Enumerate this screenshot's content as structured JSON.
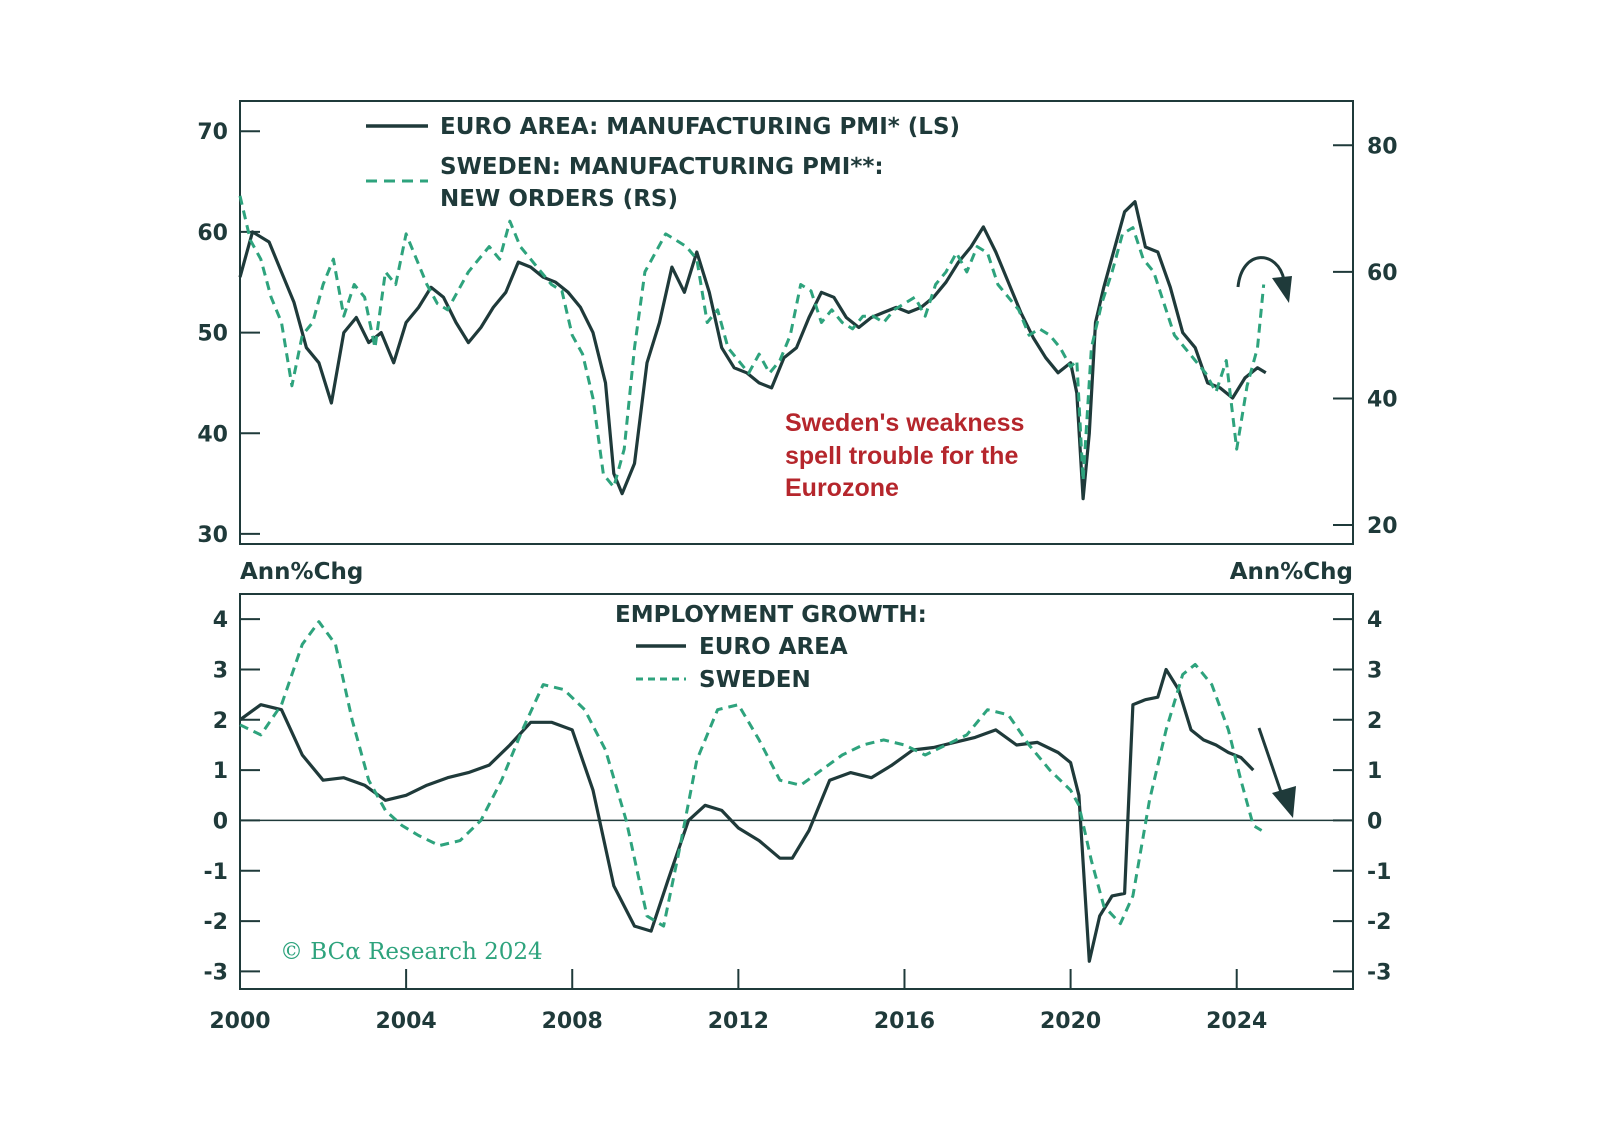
{
  "colors": {
    "euro": "#1f3a3a",
    "sweden": "#2ea37d",
    "annotation": "#b5262c",
    "frame": "#1f3a3a"
  },
  "copyright": "© BCα Research 2024",
  "chart_data": [
    {
      "type": "line",
      "panel": "top",
      "annotation": [
        "Sweden's weakness",
        "spell trouble for the",
        "Eurozone"
      ],
      "legend": {
        "euro": "EURO AREA: MANUFACTURING PMI* (LS)",
        "sweden_line1": "SWEDEN: MANUFACTURING PMI**:",
        "sweden_line2": "NEW ORDERS (RS)"
      },
      "xlim": [
        2000,
        2026.8
      ],
      "ylim_left": [
        29,
        73
      ],
      "ylim_right": [
        17,
        87
      ],
      "yticks_left": [
        "70",
        "60",
        "50",
        "40",
        "30"
      ],
      "yticks_left_values": [
        70,
        60,
        50,
        40,
        30
      ],
      "yticks_right": [
        "80",
        "60",
        "40",
        "20"
      ],
      "yticks_right_values": [
        80,
        60,
        40,
        20
      ],
      "series": [
        {
          "name": "EURO AREA: MANUFACTURING PMI* (LS)",
          "axis": "left",
          "x": [
            2000.0,
            2000.3,
            2000.7,
            2001.0,
            2001.3,
            2001.6,
            2001.9,
            2002.2,
            2002.5,
            2002.8,
            2003.1,
            2003.4,
            2003.7,
            2004.0,
            2004.3,
            2004.6,
            2004.9,
            2005.2,
            2005.5,
            2005.8,
            2006.1,
            2006.4,
            2006.7,
            2007.0,
            2007.3,
            2007.6,
            2007.9,
            2008.2,
            2008.5,
            2008.8,
            2009.0,
            2009.2,
            2009.5,
            2009.8,
            2010.1,
            2010.4,
            2010.7,
            2011.0,
            2011.3,
            2011.6,
            2011.9,
            2012.2,
            2012.5,
            2012.8,
            2013.1,
            2013.4,
            2013.7,
            2014.0,
            2014.3,
            2014.6,
            2014.9,
            2015.2,
            2015.5,
            2015.8,
            2016.1,
            2016.4,
            2016.7,
            2017.0,
            2017.3,
            2017.6,
            2017.9,
            2018.2,
            2018.5,
            2018.8,
            2019.1,
            2019.4,
            2019.7,
            2020.0,
            2020.15,
            2020.3,
            2020.45,
            2020.6,
            2020.8,
            2021.0,
            2021.3,
            2021.55,
            2021.8,
            2022.1,
            2022.4,
            2022.7,
            2023.0,
            2023.3,
            2023.6,
            2023.9,
            2024.2,
            2024.5,
            2024.7
          ],
          "y": [
            55.5,
            60.0,
            59.0,
            56.0,
            53.0,
            48.5,
            47.0,
            43.0,
            50.0,
            51.5,
            49.0,
            50.0,
            47.0,
            51.0,
            52.5,
            54.5,
            53.5,
            51.0,
            49.0,
            50.5,
            52.5,
            54.0,
            57.0,
            56.5,
            55.5,
            55.0,
            54.0,
            52.5,
            50.0,
            45.0,
            36.0,
            34.0,
            37.0,
            47.0,
            51.0,
            56.5,
            54.0,
            58.0,
            54.0,
            48.5,
            46.5,
            46.0,
            45.0,
            44.5,
            47.5,
            48.5,
            51.5,
            54.0,
            53.5,
            51.5,
            50.5,
            51.5,
            52.0,
            52.5,
            52.0,
            52.5,
            53.5,
            55.0,
            57.0,
            58.5,
            60.5,
            58.0,
            55.0,
            52.0,
            49.5,
            47.5,
            46.0,
            47.0,
            44.0,
            33.5,
            40.0,
            51.0,
            54.5,
            57.5,
            62.0,
            63.0,
            58.5,
            58.0,
            54.5,
            50.0,
            48.5,
            45.0,
            44.5,
            43.5,
            45.5,
            46.5,
            46.0
          ]
        },
        {
          "name": "SWEDEN: MANUFACTURING PMI**: NEW ORDERS (RS)",
          "axis": "right",
          "x": [
            2000.0,
            2000.25,
            2000.5,
            2000.75,
            2001.0,
            2001.25,
            2001.5,
            2001.75,
            2002.0,
            2002.25,
            2002.5,
            2002.75,
            2003.0,
            2003.25,
            2003.5,
            2003.75,
            2004.0,
            2004.25,
            2004.5,
            2004.75,
            2005.0,
            2005.25,
            2005.5,
            2005.75,
            2006.0,
            2006.25,
            2006.5,
            2006.75,
            2007.0,
            2007.25,
            2007.5,
            2007.75,
            2008.0,
            2008.25,
            2008.5,
            2008.75,
            2009.0,
            2009.25,
            2009.5,
            2009.75,
            2010.0,
            2010.25,
            2010.5,
            2010.75,
            2011.0,
            2011.25,
            2011.5,
            2011.75,
            2012.0,
            2012.25,
            2012.5,
            2012.75,
            2013.0,
            2013.25,
            2013.5,
            2013.75,
            2014.0,
            2014.25,
            2014.5,
            2014.75,
            2015.0,
            2015.25,
            2015.5,
            2015.75,
            2016.0,
            2016.25,
            2016.5,
            2016.75,
            2017.0,
            2017.25,
            2017.5,
            2017.75,
            2018.0,
            2018.25,
            2018.5,
            2018.75,
            2019.0,
            2019.25,
            2019.5,
            2019.75,
            2020.0,
            2020.15,
            2020.3,
            2020.5,
            2020.75,
            2021.0,
            2021.25,
            2021.5,
            2021.75,
            2022.0,
            2022.25,
            2022.5,
            2022.75,
            2023.0,
            2023.25,
            2023.5,
            2023.75,
            2024.0,
            2024.25,
            2024.5,
            2024.65
          ],
          "y": [
            72,
            65,
            62,
            56,
            52,
            42,
            50,
            52,
            58,
            62,
            53,
            58,
            56,
            48,
            60,
            58,
            66,
            62,
            58,
            55,
            54,
            57,
            60,
            62,
            64,
            62,
            68,
            64,
            62,
            60,
            58,
            57,
            50,
            47,
            40,
            28,
            26,
            32,
            48,
            60,
            63,
            66,
            65,
            64,
            62,
            52,
            54,
            48,
            46,
            44,
            47,
            44,
            46,
            50,
            58,
            57,
            52,
            54,
            52,
            51,
            53,
            53,
            52,
            54,
            55,
            56,
            53,
            58,
            60,
            63,
            60,
            64,
            63,
            58,
            56,
            54,
            50,
            51,
            50,
            48,
            45,
            46,
            27,
            48,
            55,
            60,
            66,
            67,
            62,
            60,
            55,
            50,
            48,
            46,
            44,
            41,
            46,
            32,
            42,
            48,
            58
          ]
        }
      ]
    },
    {
      "type": "line",
      "panel": "bottom",
      "unit_left": "Ann%Chg",
      "unit_right": "Ann%Chg",
      "legend": {
        "title": "EMPLOYMENT GROWTH:",
        "euro": "EURO AREA",
        "sweden": "SWEDEN"
      },
      "xlim": [
        2000,
        2026.8
      ],
      "ylim": [
        -3.35,
        4.5
      ],
      "yticks": [
        "4",
        "3",
        "2",
        "1",
        "0",
        "-1",
        "-2",
        "-3"
      ],
      "yticks_values": [
        4,
        3,
        2,
        1,
        0,
        -1,
        -2,
        -3
      ],
      "xticks": [
        "2000",
        "2004",
        "2008",
        "2012",
        "2016",
        "2020",
        "2024"
      ],
      "xticks_values": [
        2000,
        2004,
        2008,
        2012,
        2016,
        2020,
        2024
      ],
      "series": [
        {
          "name": "EURO AREA",
          "x": [
            2000.0,
            2000.5,
            2001.0,
            2001.5,
            2002.0,
            2002.5,
            2003.0,
            2003.5,
            2004.0,
            2004.5,
            2005.0,
            2005.5,
            2006.0,
            2006.5,
            2007.0,
            2007.5,
            2008.0,
            2008.5,
            2009.0,
            2009.5,
            2009.9,
            2010.3,
            2010.8,
            2011.2,
            2011.6,
            2012.0,
            2012.5,
            2013.0,
            2013.3,
            2013.7,
            2014.2,
            2014.7,
            2015.2,
            2015.7,
            2016.2,
            2016.7,
            2017.2,
            2017.7,
            2018.2,
            2018.7,
            2019.2,
            2019.7,
            2020.0,
            2020.2,
            2020.45,
            2020.7,
            2021.0,
            2021.3,
            2021.5,
            2021.8,
            2022.1,
            2022.3,
            2022.6,
            2022.9,
            2023.2,
            2023.5,
            2023.8,
            2024.1,
            2024.4
          ],
          "y": [
            2.0,
            2.3,
            2.2,
            1.3,
            0.8,
            0.85,
            0.7,
            0.4,
            0.5,
            0.7,
            0.85,
            0.95,
            1.1,
            1.5,
            1.95,
            1.95,
            1.8,
            0.6,
            -1.3,
            -2.1,
            -2.2,
            -1.2,
            0.0,
            0.3,
            0.2,
            -0.15,
            -0.4,
            -0.75,
            -0.75,
            -0.2,
            0.8,
            0.95,
            0.85,
            1.1,
            1.4,
            1.45,
            1.55,
            1.65,
            1.8,
            1.5,
            1.55,
            1.35,
            1.15,
            0.5,
            -2.8,
            -1.9,
            -1.5,
            -1.45,
            2.3,
            2.4,
            2.45,
            3.0,
            2.6,
            1.8,
            1.6,
            1.5,
            1.35,
            1.25,
            1.0
          ]
        },
        {
          "name": "SWEDEN",
          "x": [
            2000.0,
            2000.5,
            2001.0,
            2001.5,
            2001.9,
            2002.3,
            2002.7,
            2003.1,
            2003.5,
            2003.9,
            2004.3,
            2004.8,
            2005.3,
            2005.8,
            2006.3,
            2006.8,
            2007.3,
            2007.8,
            2008.3,
            2008.8,
            2009.3,
            2009.8,
            2010.2,
            2010.6,
            2011.0,
            2011.5,
            2012.0,
            2012.5,
            2013.0,
            2013.5,
            2014.0,
            2014.5,
            2015.0,
            2015.5,
            2016.0,
            2016.5,
            2017.0,
            2017.5,
            2018.0,
            2018.5,
            2019.0,
            2019.5,
            2020.0,
            2020.2,
            2020.5,
            2020.8,
            2021.2,
            2021.5,
            2021.9,
            2022.3,
            2022.7,
            2023.0,
            2023.4,
            2023.8,
            2024.1,
            2024.4,
            2024.6
          ],
          "y": [
            1.9,
            1.7,
            2.3,
            3.5,
            3.95,
            3.5,
            2.0,
            0.8,
            0.2,
            -0.1,
            -0.3,
            -0.5,
            -0.4,
            0.0,
            0.8,
            1.8,
            2.7,
            2.6,
            2.2,
            1.4,
            0.0,
            -1.9,
            -2.1,
            -0.5,
            1.2,
            2.2,
            2.3,
            1.6,
            0.8,
            0.7,
            1.0,
            1.3,
            1.5,
            1.6,
            1.5,
            1.3,
            1.5,
            1.7,
            2.2,
            2.1,
            1.5,
            1.0,
            0.6,
            0.3,
            -0.8,
            -1.7,
            -2.05,
            -1.5,
            0.4,
            1.8,
            2.9,
            3.1,
            2.7,
            1.8,
            0.8,
            -0.1,
            -0.2
          ]
        }
      ]
    }
  ]
}
